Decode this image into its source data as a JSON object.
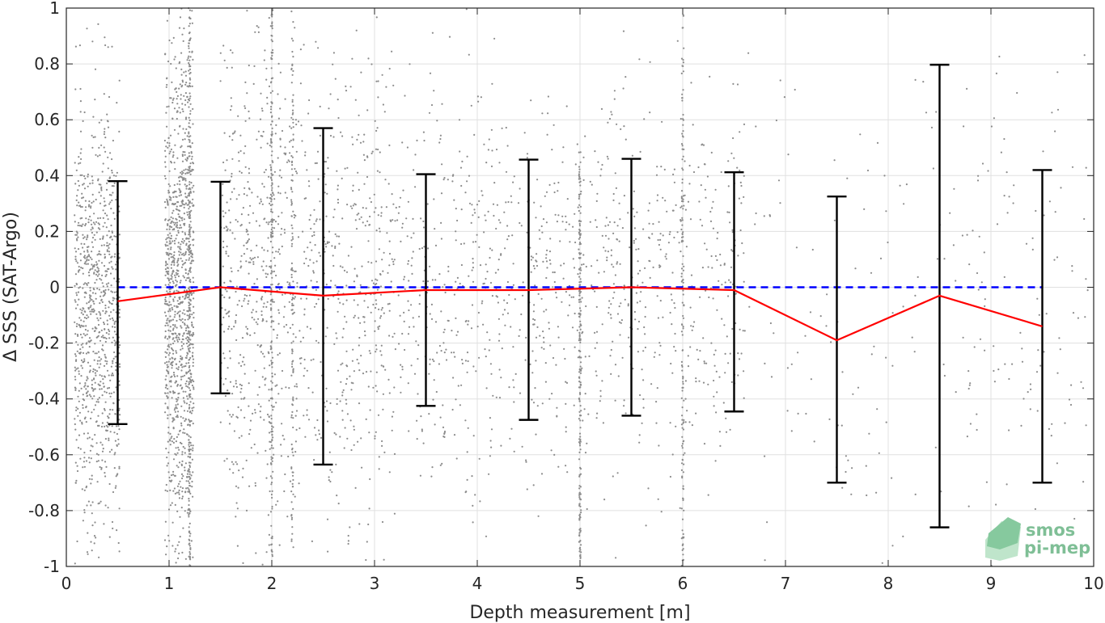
{
  "chart_data": {
    "type": "scatter",
    "xlabel": "Depth measurement [m]",
    "ylabel": "Δ SSS (SAT-Argo)",
    "xlim": [
      0,
      10
    ],
    "ylim": [
      -1,
      1
    ],
    "x_ticks": [
      "0",
      "1",
      "2",
      "3",
      "4",
      "5",
      "6",
      "7",
      "8",
      "9",
      "10"
    ],
    "y_ticks": [
      "-1",
      "-0.8",
      "-0.6",
      "-0.4",
      "-0.2",
      "0",
      "0.2",
      "0.4",
      "0.6",
      "0.8",
      "1"
    ],
    "grid": true,
    "colors": {
      "scatter": "#8c8c8c",
      "mean_line": "#ff0000",
      "zero_line": "#0000ff",
      "error_bars": "#000000",
      "grid": "#e0e0e0",
      "axes": "#262626"
    },
    "series": [
      {
        "type": "line",
        "style": "dashed",
        "x": [
          0.5,
          9.5
        ],
        "y": [
          0,
          0
        ]
      },
      {
        "type": "line",
        "x": [
          0.5,
          1.5,
          2.5,
          3.5,
          4.5,
          5.5,
          6.5,
          7.5,
          8.5,
          9.5
        ],
        "y": [
          -0.05,
          0.0,
          -0.03,
          -0.01,
          -0.01,
          0.0,
          -0.01,
          -0.19,
          -0.03,
          -0.14
        ]
      },
      {
        "type": "errorbar",
        "x": [
          0.5,
          1.5,
          2.5,
          3.5,
          4.5,
          5.5,
          6.5,
          7.5,
          8.5,
          9.5
        ],
        "low": [
          -0.49,
          -0.38,
          -0.635,
          -0.425,
          -0.475,
          -0.46,
          -0.445,
          -0.7,
          -0.86,
          -0.7
        ],
        "high": [
          0.38,
          0.378,
          0.57,
          0.405,
          0.457,
          0.46,
          0.412,
          0.325,
          0.797,
          0.42
        ]
      }
    ],
    "scatter_clusters": [
      {
        "x_center": 0.3,
        "x_spread": 0.22,
        "y_mean": -0.1,
        "y_sd": 0.38,
        "count": 900
      },
      {
        "x_center": 1.1,
        "x_spread": 0.14,
        "y_mean": 0.0,
        "y_sd": 0.45,
        "count": 1100
      },
      {
        "x_center": 1.8,
        "x_spread": 0.3,
        "y_mean": 0.0,
        "y_sd": 0.45,
        "count": 500
      },
      {
        "x_center": 2.6,
        "x_spread": 0.5,
        "y_mean": 0.0,
        "y_sd": 0.45,
        "count": 500
      },
      {
        "x_center": 3.7,
        "x_spread": 0.7,
        "y_mean": 0.0,
        "y_sd": 0.35,
        "count": 450
      },
      {
        "x_center": 5.5,
        "x_spread": 1.1,
        "y_mean": 0.0,
        "y_sd": 0.35,
        "count": 650
      },
      {
        "x_center": 7.7,
        "x_spread": 1.2,
        "y_mean": -0.1,
        "y_sd": 0.5,
        "count": 140
      },
      {
        "x_center": 9.4,
        "x_spread": 0.55,
        "y_mean": 0.0,
        "y_sd": 0.5,
        "count": 110
      }
    ],
    "scatter_stripes": [
      {
        "x": 1.2,
        "y_min": -1.0,
        "y_max": 1.0,
        "count": 220
      },
      {
        "x": 2.0,
        "y_min": -1.0,
        "y_max": 1.0,
        "count": 180
      },
      {
        "x": 2.2,
        "y_min": -0.95,
        "y_max": 1.0,
        "count": 120
      },
      {
        "x": 5.0,
        "y_min": -1.0,
        "y_max": 0.5,
        "count": 200
      },
      {
        "x": 6.0,
        "y_min": -1.0,
        "y_max": 1.0,
        "count": 140
      }
    ]
  },
  "logo": {
    "line1": "smos",
    "line2": "pi-mep"
  }
}
